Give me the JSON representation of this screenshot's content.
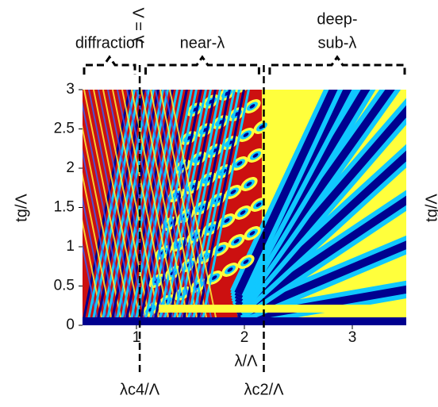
{
  "chart_data": {
    "type": "heatmap",
    "xlabel": "λ/Λ",
    "ylabel": "tg/Λ",
    "y2label": "tg/Λ",
    "xlim": [
      0.5,
      3.5
    ],
    "xticks": [
      1,
      2,
      3
    ],
    "ylim": [
      0,
      3
    ],
    "yticks": [
      0,
      0.5,
      1,
      1.5,
      2,
      2.5,
      3
    ],
    "vlines": [
      {
        "value": 1.03,
        "label": "λc4/Λ"
      },
      {
        "value": 2.18,
        "label": "λc2/Λ"
      }
    ],
    "annotation": "λ = Λ",
    "regions": [
      {
        "label": [
          "diffraction"
        ],
        "xlim": [
          0.5,
          1.0
        ]
      },
      {
        "label": [
          "near-λ"
        ],
        "xlim": [
          1.07,
          2.15
        ]
      },
      {
        "label": [
          "deep-",
          "sub-λ"
        ],
        "xlim": [
          2.22,
          3.5
        ]
      }
    ]
  }
}
